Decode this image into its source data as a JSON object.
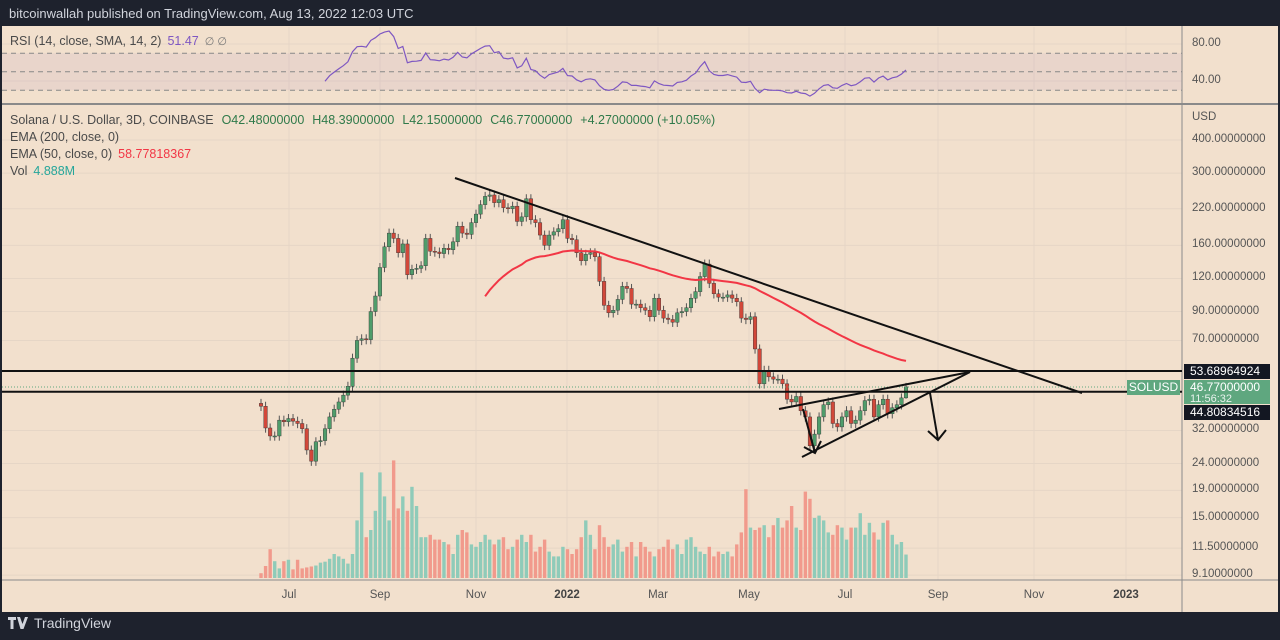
{
  "header": {
    "published": "bitcoinwallah published on TradingView.com, Aug 13, 2022 12:03 UTC"
  },
  "rsi": {
    "label": "RSI (14, close, SMA, 14, 2)",
    "value": "51.47",
    "extra": "∅ ∅",
    "ticks": [
      "80.00",
      "40.00"
    ],
    "color": "#7e57c2"
  },
  "legend": {
    "symbol": "Solana / U.S. Dollar, 3D, COINBASE",
    "open": "O42.48000000",
    "high": "H48.39000000",
    "low": "L42.15000000",
    "close": "C46.77000000",
    "change": "+4.27000000 (+10.05%)",
    "ema200": "EMA (200, close, 0)",
    "ema50": "EMA (50, close, 0)",
    "ema50_value": "58.77818367",
    "vol": "Vol",
    "vol_value": "4.888M"
  },
  "price_axis": {
    "currency": "USD"
  },
  "price_labels": {
    "upper_line": "53.68964924",
    "current": "46.77000000",
    "countdown": "11:56:32",
    "lower_line": "44.80834516",
    "symbol_tag": "SOLUSD"
  },
  "footer": {
    "brand": "TradingView"
  },
  "colors": {
    "background": "#f2e0cd",
    "up": "#4f9d6b",
    "down": "#d2483a",
    "vol_up": "#8fcbb9",
    "vol_down": "#f19a8c",
    "ema50": "#f23645",
    "rsi": "#7e57c2"
  },
  "chart_data": {
    "type": "candlestick",
    "interval": "3D",
    "scale": "log",
    "grid": true,
    "y_ticks": [
      {
        "label": "400.00000000",
        "value": 400
      },
      {
        "label": "300.00000000",
        "value": 300
      },
      {
        "label": "220.00000000",
        "value": 220
      },
      {
        "label": "160.00000000",
        "value": 160
      },
      {
        "label": "120.00000000",
        "value": 120
      },
      {
        "label": "90.00000000",
        "value": 90
      },
      {
        "label": "70.00000000",
        "value": 70
      },
      {
        "label": "32.00000000",
        "value": 32
      },
      {
        "label": "24.00000000",
        "value": 24
      },
      {
        "label": "19.00000000",
        "value": 19
      },
      {
        "label": "15.00000000",
        "value": 15
      },
      {
        "label": "11.50000000",
        "value": 11.5
      },
      {
        "label": "9.10000000",
        "value": 9.1
      }
    ],
    "x_ticks": [
      {
        "label": "Jul",
        "bold": false
      },
      {
        "label": "Sep",
        "bold": false
      },
      {
        "label": "Nov",
        "bold": false
      },
      {
        "label": "2022",
        "bold": true
      },
      {
        "label": "Mar",
        "bold": false
      },
      {
        "label": "May",
        "bold": false
      },
      {
        "label": "Jul",
        "bold": false
      },
      {
        "label": "Sep",
        "bold": false
      },
      {
        "label": "Nov",
        "bold": false
      },
      {
        "label": "2023",
        "bold": true
      }
    ],
    "first_open": 40.5,
    "close": [
      39.5,
      32.7,
      30.5,
      30.5,
      35,
      34.5,
      35.5,
      34.7,
      34,
      32.5,
      27,
      24.5,
      29,
      29.3,
      32.5,
      36,
      38.5,
      41,
      43.5,
      47,
      60,
      70,
      71,
      70.5,
      90,
      103,
      132,
      158,
      178,
      170,
      150,
      162,
      124,
      130,
      131,
      134,
      170,
      152,
      151,
      149,
      156,
      154,
      165,
      189,
      178,
      176,
      195,
      210,
      228,
      245,
      248,
      232,
      238,
      222,
      220,
      225,
      197,
      205,
      240,
      200,
      195,
      175,
      160,
      175,
      180,
      185,
      200,
      170,
      168,
      150,
      140,
      148,
      150,
      145,
      117,
      95,
      89,
      91,
      100,
      112,
      110,
      96,
      96,
      93,
      91,
      86,
      101,
      91,
      85,
      84,
      82,
      89,
      90,
      93,
      101,
      107,
      122,
      136,
      115,
      105,
      102,
      102,
      104,
      101,
      98,
      85,
      84,
      86,
      65,
      48,
      54,
      51,
      50,
      50,
      48,
      42,
      41,
      43,
      38,
      36,
      28,
      31,
      36,
      40,
      41,
      34,
      33,
      36,
      38,
      34,
      35,
      38,
      41.5,
      42,
      36,
      40,
      42,
      37,
      39,
      40,
      42.48,
      46.77
    ],
    "last_candle": {
      "open": 42.48,
      "high": 48.39,
      "low": 42.15,
      "close": 46.77
    },
    "volume_millions": [
      1.0,
      2.5,
      6.0,
      3.5,
      2.0,
      3.5,
      3.8,
      1.8,
      3.8,
      2.0,
      2.2,
      2.4,
      2.6,
      3.2,
      3.4,
      4.0,
      5.0,
      4.5,
      4.0,
      3.0,
      5.0,
      12.0,
      22.0,
      8.5,
      10.0,
      14.0,
      22.0,
      17.0,
      12.0,
      24.5,
      14.5,
      17.0,
      14.0,
      19.0,
      15.0,
      8.5,
      8.5,
      9.0,
      8.0,
      8.0,
      7.5,
      7.0,
      5.0,
      9.0,
      10.0,
      9.5,
      7.0,
      6.5,
      7.5,
      9.0,
      8.0,
      7.0,
      8.0,
      8.5,
      6.0,
      6.5,
      8.0,
      9.0,
      7.5,
      9.0,
      5.5,
      6.5,
      8.0,
      5.5,
      4.5,
      4.5,
      6.5,
      6.0,
      5.0,
      6.0,
      8.5,
      12.0,
      9.0,
      6.0,
      11.0,
      8.5,
      6.5,
      7.0,
      8.0,
      5.5,
      6.5,
      7.5,
      4.5,
      7.5,
      6.5,
      5.5,
      4.5,
      6.0,
      6.5,
      8.0,
      6.0,
      7.0,
      5.0,
      8.0,
      8.5,
      6.5,
      5.5,
      5.0,
      6.5,
      4.5,
      5.5,
      5.0,
      5.5,
      4.5,
      7.0,
      9.5,
      18.5,
      10.5,
      10.0,
      10.5,
      11.0,
      8.5,
      11.0,
      12.5,
      10.5,
      12.0,
      15.0,
      10.5,
      10.0,
      18.0,
      16.5,
      12.5,
      13.0,
      12.0,
      9.5,
      9.0,
      11.0,
      10.5,
      8.0,
      10.5,
      10.5,
      13.5,
      9.0,
      11.5,
      9.5,
      8.0,
      11.5,
      12.0,
      9.0,
      7.0,
      7.5,
      4.888
    ],
    "horizontal_levels": [
      53.68964924,
      44.80834516
    ],
    "rsi_levels": [
      70,
      50,
      30
    ]
  }
}
